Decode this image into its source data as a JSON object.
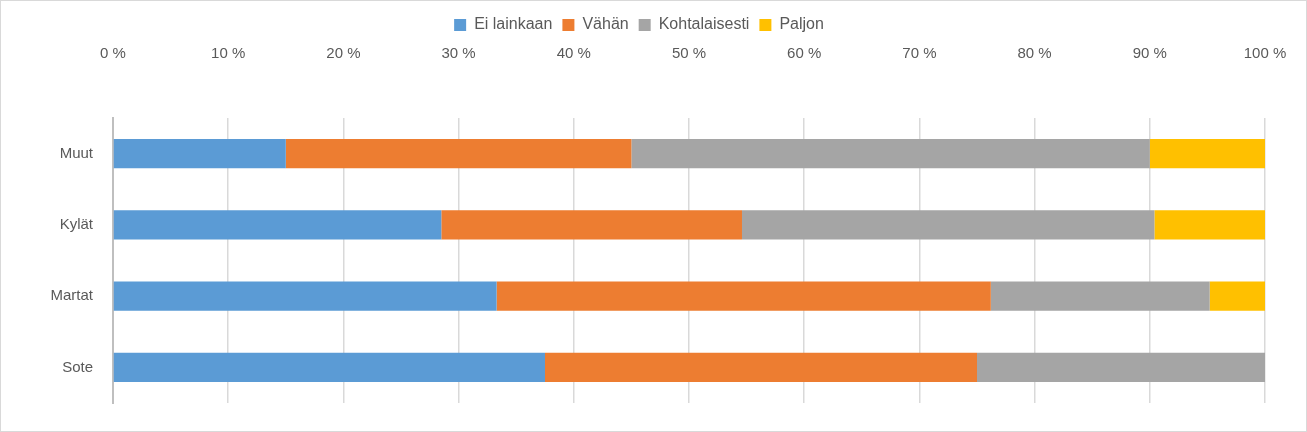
{
  "chart_data": {
    "type": "bar",
    "orientation": "horizontal",
    "stacked": true,
    "categories": [
      "Muut",
      "Kylät",
      "Martat",
      "Sote"
    ],
    "series": [
      {
        "name": "Ei lainkaan",
        "color": "#5b9bd5",
        "values": [
          15,
          28.5,
          33.3,
          37.5
        ]
      },
      {
        "name": "Vähän",
        "color": "#ed7d31",
        "values": [
          30,
          26.1,
          42.9,
          37.5
        ]
      },
      {
        "name": "Kohtalaisesti",
        "color": "#a5a5a5",
        "values": [
          45,
          35.8,
          19,
          25
        ]
      },
      {
        "name": "Paljon",
        "color": "#ffc000",
        "values": [
          10,
          9.6,
          4.8,
          0
        ]
      }
    ],
    "xlim": [
      0,
      100
    ],
    "xticks": [
      {
        "value": 0,
        "label": "0 %"
      },
      {
        "value": 10,
        "label": "10 %"
      },
      {
        "value": 20,
        "label": "20 %"
      },
      {
        "value": 30,
        "label": "30 %"
      },
      {
        "value": 40,
        "label": "40 %"
      },
      {
        "value": 50,
        "label": "50 %"
      },
      {
        "value": 60,
        "label": "60 %"
      },
      {
        "value": 70,
        "label": "70 %"
      },
      {
        "value": 80,
        "label": "80 %"
      },
      {
        "value": 90,
        "label": "90 %"
      },
      {
        "value": 100,
        "label": "100 %"
      }
    ],
    "grid": "x",
    "legend": "top"
  }
}
